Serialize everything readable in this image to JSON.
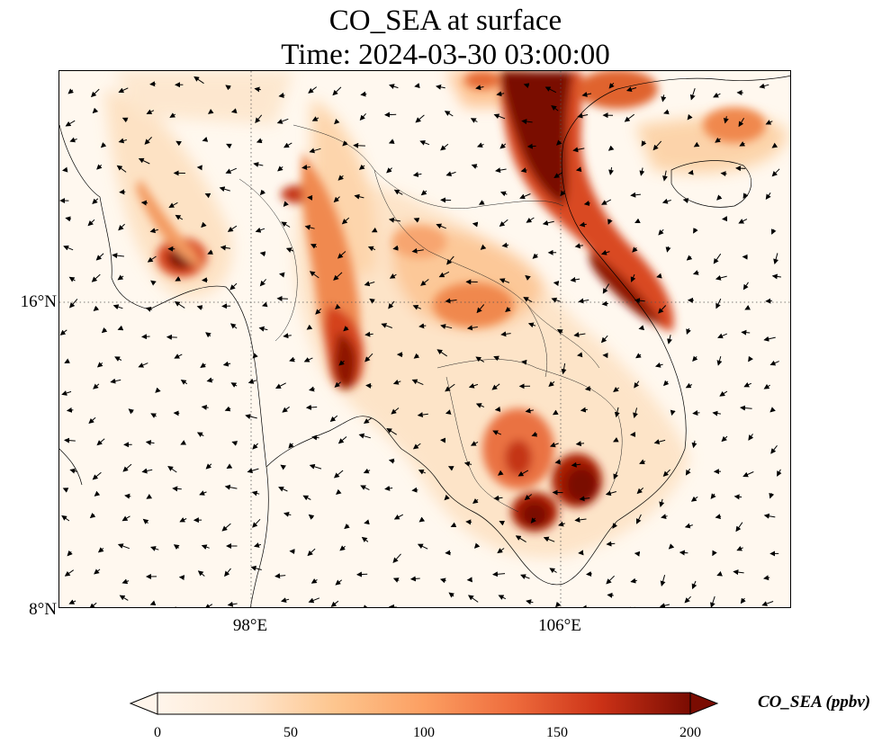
{
  "title": {
    "line1": "CO_SEA at surface",
    "line2": "Time: 2024-03-30 03:00:00"
  },
  "map": {
    "lat_labels": [
      "16°N",
      "8°N"
    ],
    "lon_labels": [
      "98°E",
      "106°E"
    ],
    "gridline_style": "dotted",
    "wind_vectors": "shown"
  },
  "colorbar": {
    "label": "CO_SEA (ppbv)",
    "ticks": [
      "0",
      "50",
      "100",
      "150",
      "200"
    ],
    "range": [
      0,
      200
    ],
    "colormap": [
      "#fff5eb",
      "#fdd3a7",
      "#fdab67",
      "#f5753d",
      "#d94a22",
      "#a81e05",
      "#7a0c02"
    ],
    "extend": "both"
  },
  "colors": {
    "plume_high": "#7a0c02",
    "plume_mid": "#d94a22",
    "plume_low": "#fdd3a7",
    "background": "#fff8ef"
  }
}
